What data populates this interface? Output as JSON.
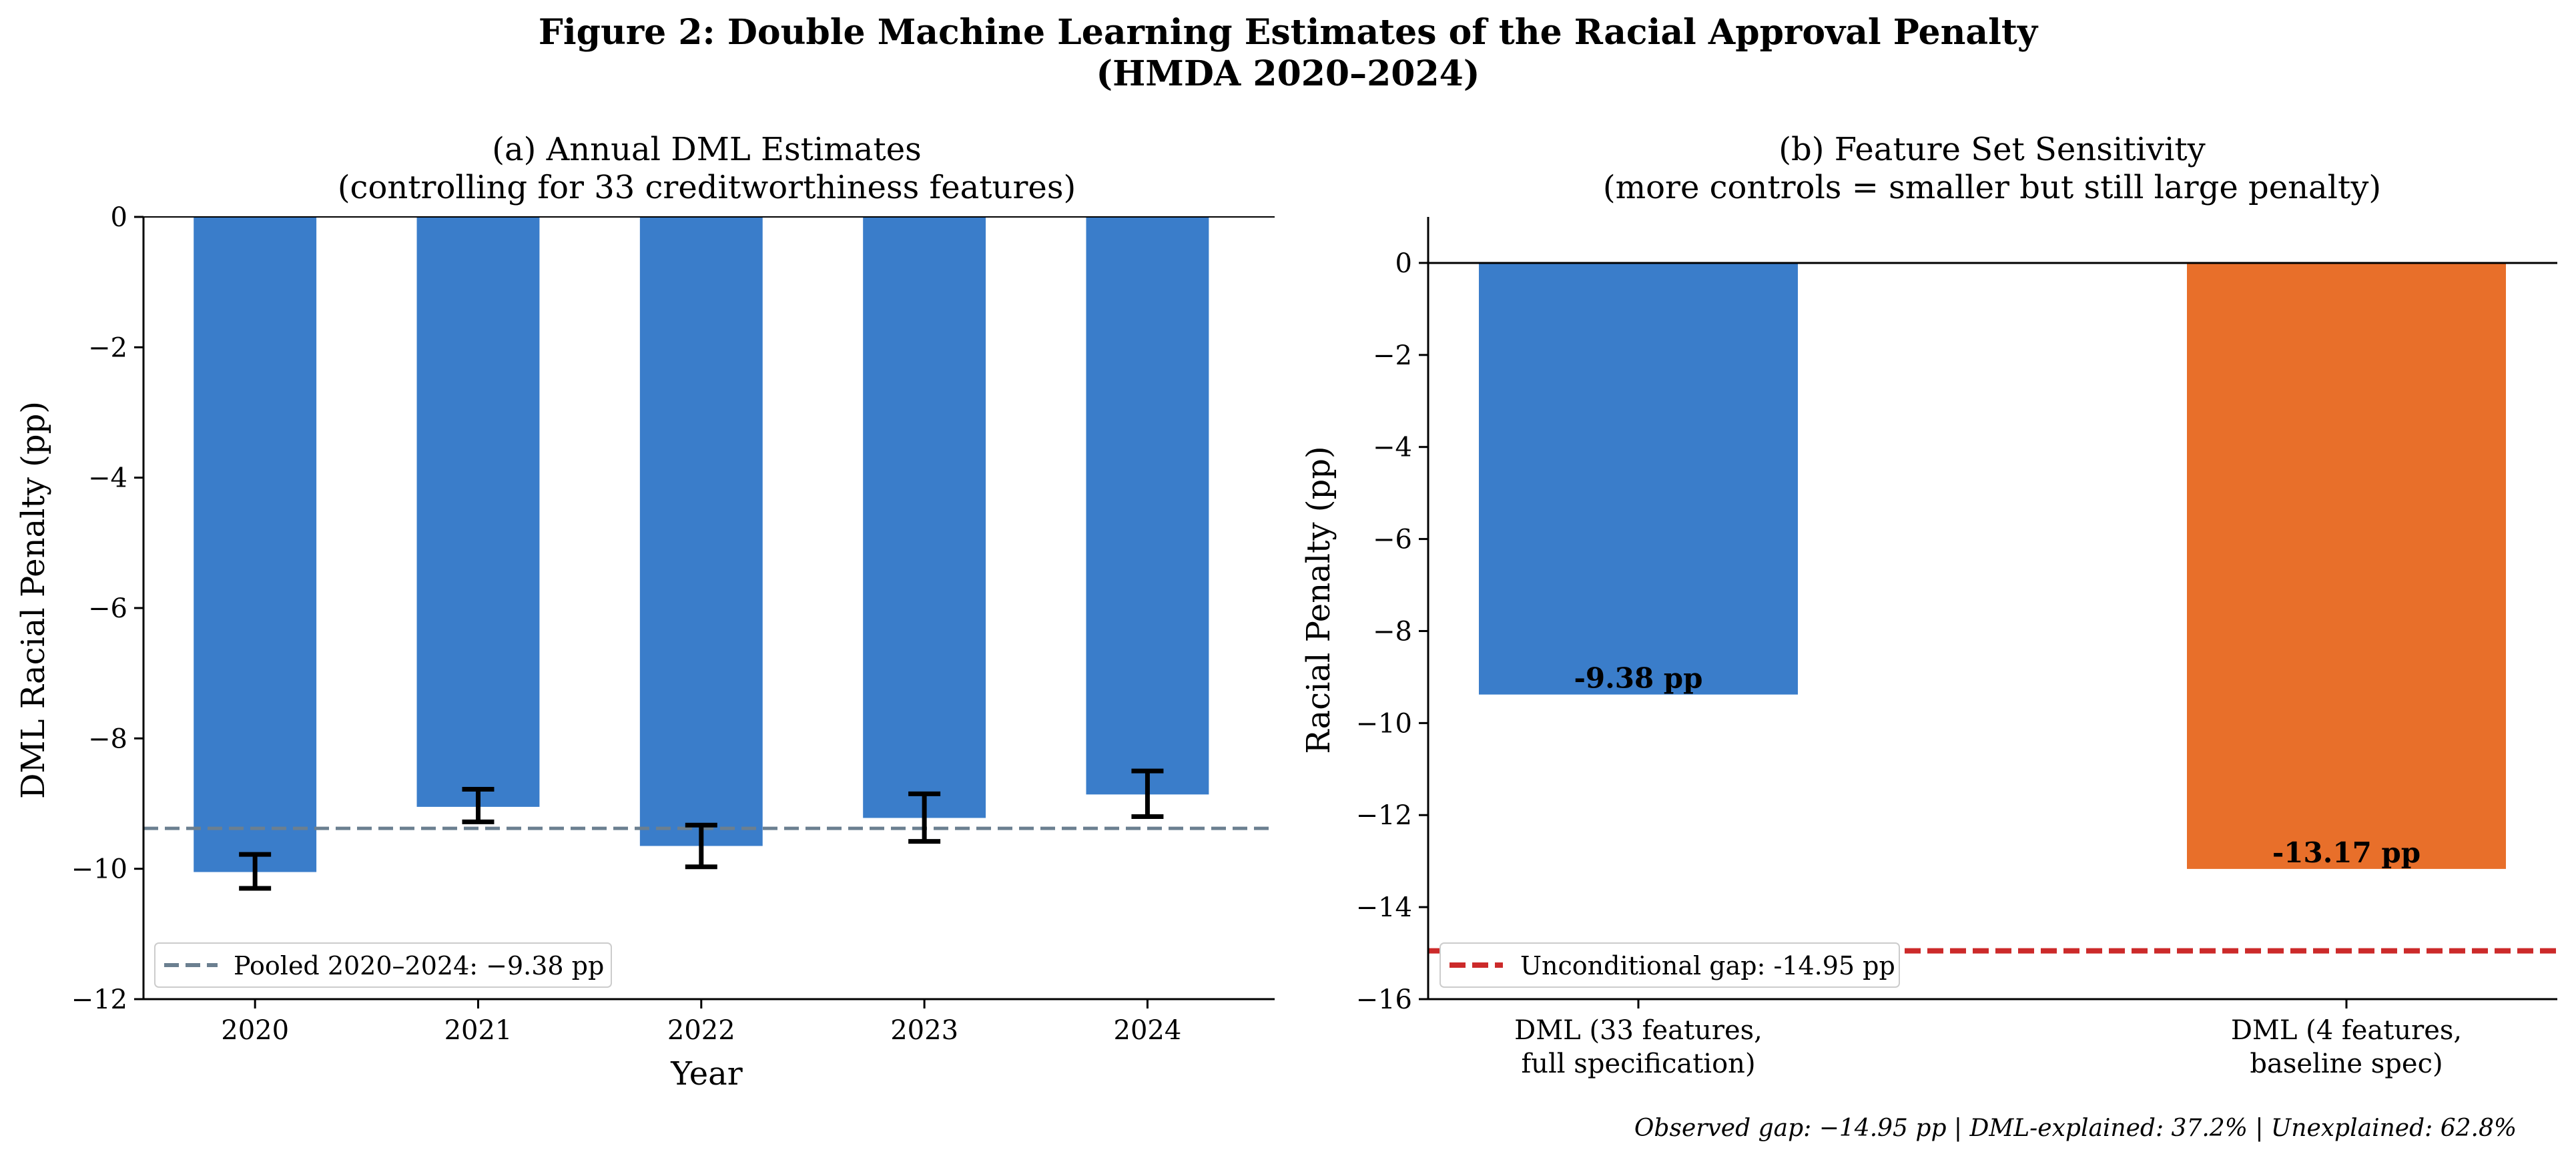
{
  "figure": {
    "title_line1": "Figure 2: Double Machine Learning Estimates of the Racial Approval Penalty",
    "title_line2": "(HMDA 2020–2024)",
    "footer_note": "Observed gap: −14.95 pp | DML-explained: 37.2% | Unexplained: 62.8%"
  },
  "chart_data": [
    {
      "type": "bar",
      "title": "(a) Annual DML Estimates",
      "subtitle": "(controlling for 33 creditworthiness features)",
      "xlabel": "Year",
      "ylabel": "DML Racial Penalty (pp)",
      "categories": [
        "2020",
        "2021",
        "2022",
        "2023",
        "2024"
      ],
      "values": [
        -10.05,
        -9.05,
        -9.65,
        -9.22,
        -8.86
      ],
      "error_intervals": [
        [
          -10.3,
          -9.78
        ],
        [
          -9.28,
          -8.78
        ],
        [
          -9.97,
          -9.33
        ],
        [
          -9.58,
          -8.85
        ],
        [
          -9.2,
          -8.5
        ]
      ],
      "ylim": [
        -12,
        0
      ],
      "yticks": [
        0,
        -2,
        -4,
        -6,
        -8,
        -10,
        -12
      ],
      "ytick_labels": [
        "0",
        "−2",
        "−4",
        "−6",
        "−8",
        "−10",
        "−12"
      ],
      "reference_line": {
        "value": -9.38,
        "label": "Pooled 2020–2024: −9.38 pp",
        "color": "#6b7f90"
      },
      "bar_color": "#3a7dca",
      "legend_position": "lower-left",
      "grid": false
    },
    {
      "type": "bar",
      "title": "(b) Feature Set Sensitivity",
      "subtitle": "(more controls = smaller but still large penalty)",
      "xlabel": "",
      "ylabel": "Racial Penalty (pp)",
      "categories": [
        [
          "DML (33 features,",
          "full specification)"
        ],
        [
          "DML (4 features,",
          "baseline spec)"
        ]
      ],
      "values": [
        -9.38,
        -13.17
      ],
      "data_labels": [
        "-9.38 pp",
        "-13.17 pp"
      ],
      "colors": [
        "#3a7dca",
        "#e86f2a"
      ],
      "ylim": [
        -16,
        1
      ],
      "yticks": [
        0,
        -2,
        -4,
        -6,
        -8,
        -10,
        -12,
        -14,
        -16
      ],
      "ytick_labels": [
        "0",
        "−2",
        "−4",
        "−6",
        "−8",
        "−10",
        "−12",
        "−14",
        "−16"
      ],
      "reference_line": {
        "value": -14.95,
        "label": "Unconditional gap: -14.95 pp",
        "color": "#cc2a2a"
      },
      "legend_position": "lower-left",
      "grid": false
    }
  ]
}
